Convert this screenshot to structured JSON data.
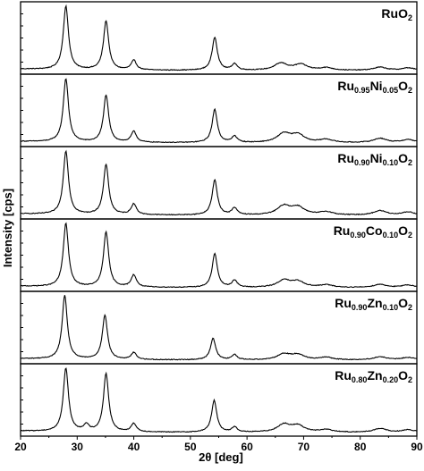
{
  "chart_data": {
    "type": "line",
    "xlabel": "2θ [deg]",
    "ylabel": "Intensity [cps]",
    "xlim": [
      20,
      90
    ],
    "xticks": [
      "20",
      "30",
      "40",
      "50",
      "60",
      "70",
      "80",
      "90"
    ],
    "line_color": "#000000",
    "grid": false,
    "series": [
      {
        "name": "RuO2",
        "label_parts": [
          {
            "t": "RuO",
            "sub": false
          },
          {
            "t": "2",
            "sub": true
          }
        ],
        "peaks": [
          [
            28.0,
            1.0
          ],
          [
            35.1,
            0.77
          ],
          [
            40.0,
            0.15
          ],
          [
            54.3,
            0.52
          ],
          [
            57.8,
            0.1
          ],
          [
            66.0,
            0.11
          ],
          [
            69.5,
            0.09
          ],
          [
            74.0,
            0.04
          ],
          [
            83.5,
            0.05
          ],
          [
            88.5,
            0.04
          ]
        ]
      },
      {
        "name": "Ru0.95Ni0.05O2",
        "label_parts": [
          {
            "t": "Ru",
            "sub": false
          },
          {
            "t": "0.95",
            "sub": true
          },
          {
            "t": "Ni",
            "sub": false
          },
          {
            "t": "0.05",
            "sub": true
          },
          {
            "t": "O",
            "sub": false
          },
          {
            "t": "2",
            "sub": true
          }
        ],
        "peaks": [
          [
            28.0,
            1.0
          ],
          [
            35.1,
            0.74
          ],
          [
            40.0,
            0.17
          ],
          [
            54.3,
            0.52
          ],
          [
            57.8,
            0.1
          ],
          [
            66.5,
            0.14
          ],
          [
            69.0,
            0.12
          ],
          [
            74.0,
            0.05
          ],
          [
            83.5,
            0.07
          ],
          [
            88.5,
            0.05
          ]
        ]
      },
      {
        "name": "Ru0.90Ni0.10O2",
        "label_parts": [
          {
            "t": "Ru",
            "sub": false
          },
          {
            "t": "0.90",
            "sub": true
          },
          {
            "t": "Ni",
            "sub": false
          },
          {
            "t": "0.10",
            "sub": true
          },
          {
            "t": "O",
            "sub": false
          },
          {
            "t": "2",
            "sub": true
          }
        ],
        "peaks": [
          [
            28.0,
            1.0
          ],
          [
            35.1,
            0.79
          ],
          [
            40.0,
            0.17
          ],
          [
            54.3,
            0.55
          ],
          [
            57.8,
            0.11
          ],
          [
            66.5,
            0.14
          ],
          [
            69.0,
            0.12
          ],
          [
            74.0,
            0.05
          ],
          [
            83.5,
            0.07
          ],
          [
            88.5,
            0.05
          ]
        ]
      },
      {
        "name": "Ru0.90Co0.10O2",
        "label_parts": [
          {
            "t": "Ru",
            "sub": false
          },
          {
            "t": "0.90",
            "sub": true
          },
          {
            "t": "Co",
            "sub": false
          },
          {
            "t": "0.10",
            "sub": true
          },
          {
            "t": "O",
            "sub": false
          },
          {
            "t": "2",
            "sub": true
          }
        ],
        "peaks": [
          [
            28.0,
            1.0
          ],
          [
            35.1,
            0.87
          ],
          [
            40.0,
            0.19
          ],
          [
            54.3,
            0.53
          ],
          [
            57.8,
            0.11
          ],
          [
            66.5,
            0.11
          ],
          [
            69.0,
            0.09
          ],
          [
            74.0,
            0.04
          ],
          [
            83.5,
            0.05
          ],
          [
            88.5,
            0.04
          ]
        ]
      },
      {
        "name": "Ru0.90Zn0.10O2",
        "label_parts": [
          {
            "t": "Ru",
            "sub": false
          },
          {
            "t": "0.90",
            "sub": true
          },
          {
            "t": "Zn",
            "sub": false
          },
          {
            "t": "0.10",
            "sub": true
          },
          {
            "t": "O",
            "sub": false
          },
          {
            "t": "2",
            "sub": true
          }
        ],
        "peaks": [
          [
            27.8,
            1.0
          ],
          [
            34.9,
            0.7
          ],
          [
            40.0,
            0.11
          ],
          [
            54.0,
            0.34
          ],
          [
            57.8,
            0.08
          ],
          [
            66.5,
            0.09
          ],
          [
            69.0,
            0.08
          ],
          [
            74.0,
            0.04
          ],
          [
            83.5,
            0.05
          ],
          [
            88.5,
            0.04
          ]
        ]
      },
      {
        "name": "Ru0.80Zn0.20O2",
        "label_parts": [
          {
            "t": "Ru",
            "sub": false
          },
          {
            "t": "0.80",
            "sub": true
          },
          {
            "t": "Zn",
            "sub": false
          },
          {
            "t": "0.20",
            "sub": true
          },
          {
            "t": "O",
            "sub": false
          },
          {
            "t": "2",
            "sub": true
          }
        ],
        "peaks": [
          [
            28.0,
            1.0
          ],
          [
            35.1,
            0.92
          ],
          [
            31.6,
            0.1
          ],
          [
            40.0,
            0.13
          ],
          [
            54.2,
            0.5
          ],
          [
            57.8,
            0.08
          ],
          [
            66.5,
            0.12
          ],
          [
            69.0,
            0.1
          ],
          [
            74.0,
            0.04
          ],
          [
            83.5,
            0.06
          ],
          [
            88.5,
            0.04
          ]
        ]
      }
    ]
  }
}
